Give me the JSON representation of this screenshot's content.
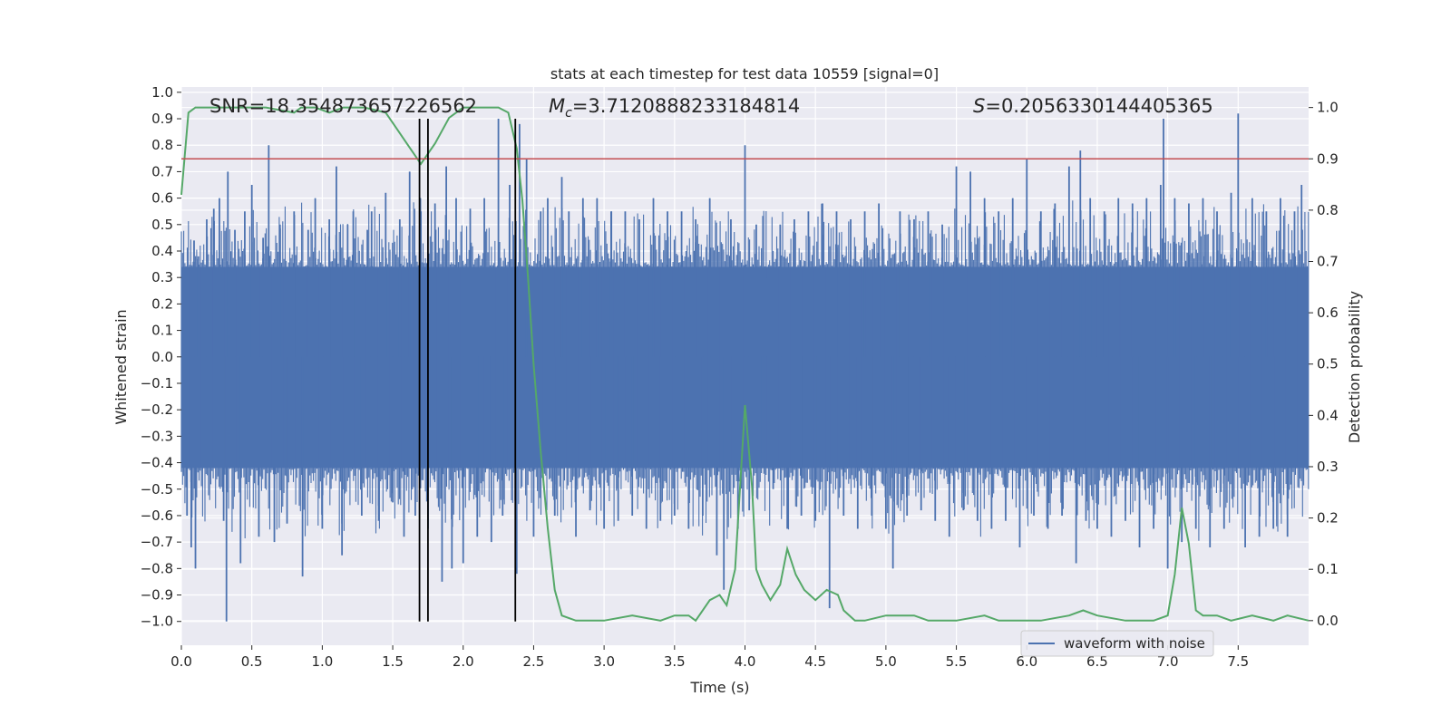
{
  "chart_data": {
    "type": "line",
    "title": "stats at each timestep for test data 10559 [signal=0]",
    "xlabel": "Time (s)",
    "ylabel_left": "Whitened strain",
    "ylabel_right": "Detection probability",
    "xlim": [
      0.0,
      8.0
    ],
    "ylim_left": [
      -1.09,
      1.02
    ],
    "ylim_right": [
      -0.048,
      1.04
    ],
    "xticks": [
      0.0,
      0.5,
      1.0,
      1.5,
      2.0,
      2.5,
      3.0,
      3.5,
      4.0,
      4.5,
      5.0,
      5.5,
      6.0,
      6.5,
      7.0,
      7.5
    ],
    "xtick_labels": [
      "0.0",
      "0.5",
      "1.0",
      "1.5",
      "2.0",
      "2.5",
      "3.0",
      "3.5",
      "4.0",
      "4.5",
      "5.0",
      "5.5",
      "6.0",
      "6.5",
      "7.0",
      "7.5"
    ],
    "yticks_left": [
      1.0,
      0.9,
      0.8,
      0.7,
      0.6,
      0.5,
      0.4,
      0.3,
      0.2,
      0.1,
      0.0,
      -0.1,
      -0.2,
      -0.3,
      -0.4,
      -0.5,
      -0.6,
      -0.7,
      -0.8,
      -0.9,
      -1.0
    ],
    "ytick_labels_left": [
      "1.0",
      "0.9",
      "0.8",
      "0.7",
      "0.6",
      "0.5",
      "0.4",
      "0.3",
      "0.2",
      "0.1",
      "0.0",
      "−0.1",
      "−0.2",
      "−0.3",
      "−0.4",
      "−0.5",
      "−0.6",
      "−0.7",
      "−0.8",
      "−0.9",
      "−1.0"
    ],
    "yticks_right": [
      1.0,
      0.9,
      0.8,
      0.7,
      0.6,
      0.5,
      0.4,
      0.3,
      0.2,
      0.1,
      0.0
    ],
    "ytick_labels_right": [
      "1.0",
      "0.9",
      "0.8",
      "0.7",
      "0.6",
      "0.5",
      "0.4",
      "0.3",
      "0.2",
      "0.1",
      "0.0"
    ],
    "grid": true,
    "legend": {
      "placement": "lower-right",
      "entries": [
        "waveform with noise"
      ]
    },
    "annotations": {
      "snr": "SNR=18.354873657226562",
      "mc_label": "M",
      "mc_sub": "c",
      "mc_value": "=3.7120888233184814",
      "s_label": "S",
      "s_value": "=0.2056330144405365"
    },
    "waveform": {
      "name": "waveform with noise",
      "color": "#4c72b0",
      "dense_band": [
        -0.42,
        0.34
      ],
      "spikes": [
        [
          0.04,
          -0.6
        ],
        [
          0.07,
          -0.72
        ],
        [
          0.09,
          0.44
        ],
        [
          0.1,
          -0.8
        ],
        [
          0.12,
          0.38
        ],
        [
          0.18,
          0.52
        ],
        [
          0.23,
          0.56
        ],
        [
          0.27,
          0.6
        ],
        [
          0.3,
          -0.62
        ],
        [
          0.32,
          -1.0
        ],
        [
          0.33,
          0.7
        ],
        [
          0.38,
          0.48
        ],
        [
          0.42,
          -0.78
        ],
        [
          0.45,
          0.55
        ],
        [
          0.5,
          0.65
        ],
        [
          0.55,
          -0.68
        ],
        [
          0.58,
          0.45
        ],
        [
          0.62,
          0.8
        ],
        [
          0.66,
          -0.7
        ],
        [
          0.7,
          0.5
        ],
        [
          0.75,
          -0.63
        ],
        [
          0.8,
          0.55
        ],
        [
          0.86,
          -0.83
        ],
        [
          0.9,
          0.48
        ],
        [
          0.95,
          0.6
        ],
        [
          1.0,
          -0.65
        ],
        [
          1.05,
          0.52
        ],
        [
          1.1,
          0.72
        ],
        [
          1.14,
          -0.75
        ],
        [
          1.18,
          0.5
        ],
        [
          1.22,
          0.55
        ],
        [
          1.28,
          -0.6
        ],
        [
          1.32,
          0.48
        ],
        [
          1.35,
          0.55
        ],
        [
          1.4,
          -0.62
        ],
        [
          1.45,
          0.62
        ],
        [
          1.5,
          -0.55
        ],
        [
          1.55,
          0.52
        ],
        [
          1.58,
          -0.68
        ],
        [
          1.62,
          0.7
        ],
        [
          1.66,
          -0.6
        ],
        [
          1.7,
          0.55
        ],
        [
          1.75,
          -0.65
        ],
        [
          1.8,
          0.58
        ],
        [
          1.85,
          -0.85
        ],
        [
          1.88,
          0.72
        ],
        [
          1.92,
          -0.8
        ],
        [
          1.95,
          0.6
        ],
        [
          2.0,
          -0.78
        ],
        [
          2.05,
          0.56
        ],
        [
          2.1,
          -0.68
        ],
        [
          2.15,
          0.6
        ],
        [
          2.2,
          -0.7
        ],
        [
          2.25,
          0.9
        ],
        [
          2.28,
          -0.6
        ],
        [
          2.33,
          0.65
        ],
        [
          2.38,
          -0.82
        ],
        [
          2.4,
          0.88
        ],
        [
          2.45,
          0.75
        ],
        [
          2.5,
          -0.68
        ],
        [
          2.55,
          0.55
        ],
        [
          2.6,
          0.6
        ],
        [
          2.65,
          -0.6
        ],
        [
          2.7,
          0.68
        ],
        [
          2.75,
          0.55
        ],
        [
          2.8,
          -0.68
        ],
        [
          2.85,
          0.6
        ],
        [
          2.9,
          -0.58
        ],
        [
          2.95,
          0.6
        ],
        [
          3.0,
          -0.65
        ],
        [
          3.05,
          0.55
        ],
        [
          3.1,
          -0.62
        ],
        [
          3.15,
          0.55
        ],
        [
          3.2,
          -0.6
        ],
        [
          3.25,
          0.52
        ],
        [
          3.3,
          -0.65
        ],
        [
          3.35,
          0.6
        ],
        [
          3.4,
          -0.62
        ],
        [
          3.45,
          0.55
        ],
        [
          3.5,
          -0.6
        ],
        [
          3.55,
          0.55
        ],
        [
          3.6,
          -0.65
        ],
        [
          3.65,
          0.52
        ],
        [
          3.7,
          -0.6
        ],
        [
          3.75,
          0.6
        ],
        [
          3.8,
          -0.75
        ],
        [
          3.85,
          -0.88
        ],
        [
          3.9,
          0.52
        ],
        [
          3.95,
          -0.65
        ],
        [
          4.0,
          0.8
        ],
        [
          4.03,
          -0.58
        ],
        [
          4.08,
          0.5
        ],
        [
          4.12,
          -0.4
        ],
        [
          4.15,
          0.3
        ],
        [
          4.2,
          -0.5
        ],
        [
          4.25,
          0.5
        ],
        [
          4.3,
          -0.65
        ],
        [
          4.35,
          0.52
        ],
        [
          4.4,
          -0.6
        ],
        [
          4.45,
          0.55
        ],
        [
          4.5,
          -0.62
        ],
        [
          4.55,
          0.58
        ],
        [
          4.6,
          -0.95
        ],
        [
          4.65,
          0.55
        ],
        [
          4.7,
          -0.6
        ],
        [
          4.75,
          0.52
        ],
        [
          4.8,
          -0.65
        ],
        [
          4.85,
          0.55
        ],
        [
          4.9,
          -0.6
        ],
        [
          4.95,
          0.58
        ],
        [
          5.0,
          -0.65
        ],
        [
          5.05,
          -0.8
        ],
        [
          5.1,
          0.55
        ],
        [
          5.15,
          -0.6
        ],
        [
          5.2,
          0.52
        ],
        [
          5.25,
          -0.58
        ],
        [
          5.3,
          0.55
        ],
        [
          5.35,
          -0.62
        ],
        [
          5.4,
          0.5
        ],
        [
          5.45,
          -0.68
        ],
        [
          5.5,
          0.72
        ],
        [
          5.55,
          -0.58
        ],
        [
          5.6,
          0.7
        ],
        [
          5.65,
          -0.62
        ],
        [
          5.7,
          0.6
        ],
        [
          5.75,
          -0.65
        ],
        [
          5.8,
          0.55
        ],
        [
          5.85,
          -0.62
        ],
        [
          5.9,
          0.6
        ],
        [
          5.95,
          -0.72
        ],
        [
          6.0,
          0.75
        ],
        [
          6.05,
          -0.6
        ],
        [
          6.1,
          0.55
        ],
        [
          6.15,
          -0.65
        ],
        [
          6.2,
          0.58
        ],
        [
          6.25,
          -0.6
        ],
        [
          6.3,
          0.72
        ],
        [
          6.35,
          -0.78
        ],
        [
          6.38,
          0.78
        ],
        [
          6.42,
          -0.62
        ],
        [
          6.45,
          0.6
        ],
        [
          6.5,
          -0.65
        ],
        [
          6.55,
          0.55
        ],
        [
          6.6,
          -0.68
        ],
        [
          6.65,
          0.6
        ],
        [
          6.7,
          -0.62
        ],
        [
          6.75,
          0.58
        ],
        [
          6.8,
          -0.72
        ],
        [
          6.85,
          0.6
        ],
        [
          6.9,
          -0.65
        ],
        [
          6.95,
          0.65
        ],
        [
          6.97,
          0.9
        ],
        [
          7.0,
          -0.8
        ],
        [
          7.05,
          0.6
        ],
        [
          7.1,
          -0.7
        ],
        [
          7.15,
          0.58
        ],
        [
          7.2,
          -0.65
        ],
        [
          7.25,
          0.6
        ],
        [
          7.3,
          -0.72
        ],
        [
          7.35,
          0.55
        ],
        [
          7.4,
          -0.65
        ],
        [
          7.45,
          0.62
        ],
        [
          7.5,
          0.92
        ],
        [
          7.55,
          -0.72
        ],
        [
          7.6,
          0.6
        ],
        [
          7.65,
          -0.68
        ],
        [
          7.7,
          0.55
        ],
        [
          7.75,
          -0.65
        ],
        [
          7.8,
          0.6
        ],
        [
          7.85,
          -0.68
        ],
        [
          7.9,
          0.55
        ],
        [
          7.95,
          0.65
        ]
      ]
    },
    "detection_probability": {
      "color": "#55a868",
      "x": [
        0.0,
        0.05,
        0.1,
        0.2,
        0.4,
        0.6,
        0.8,
        0.85,
        0.95,
        1.05,
        1.15,
        1.3,
        1.45,
        1.5,
        1.6,
        1.7,
        1.75,
        1.8,
        1.9,
        2.0,
        2.1,
        2.25,
        2.32,
        2.38,
        2.42,
        2.46,
        2.5,
        2.55,
        2.6,
        2.65,
        2.7,
        2.8,
        3.0,
        3.2,
        3.4,
        3.5,
        3.55,
        3.6,
        3.65,
        3.75,
        3.82,
        3.87,
        3.93,
        4.0,
        4.05,
        4.08,
        4.12,
        4.18,
        4.25,
        4.3,
        4.36,
        4.42,
        4.5,
        4.58,
        4.66,
        4.7,
        4.78,
        4.85,
        5.0,
        5.2,
        5.3,
        5.5,
        5.7,
        5.8,
        5.9,
        6.1,
        6.3,
        6.4,
        6.5,
        6.7,
        6.9,
        7.0,
        7.05,
        7.1,
        7.15,
        7.2,
        7.25,
        7.35,
        7.45,
        7.6,
        7.75,
        7.85,
        8.0
      ],
      "y": [
        0.83,
        0.99,
        1.0,
        1.0,
        1.0,
        1.0,
        0.99,
        1.0,
        1.0,
        0.99,
        1.0,
        1.0,
        0.99,
        0.97,
        0.93,
        0.89,
        0.91,
        0.93,
        0.98,
        1.0,
        1.0,
        1.0,
        0.99,
        0.92,
        0.82,
        0.67,
        0.5,
        0.33,
        0.18,
        0.06,
        0.01,
        0.0,
        0.0,
        0.01,
        0.0,
        0.01,
        0.01,
        0.01,
        0.0,
        0.04,
        0.05,
        0.03,
        0.1,
        0.42,
        0.26,
        0.1,
        0.07,
        0.04,
        0.07,
        0.14,
        0.09,
        0.06,
        0.04,
        0.06,
        0.05,
        0.02,
        0.0,
        0.0,
        0.01,
        0.01,
        0.0,
        0.0,
        0.01,
        0.0,
        0.0,
        0.0,
        0.01,
        0.02,
        0.01,
        0.0,
        0.0,
        0.01,
        0.09,
        0.22,
        0.15,
        0.02,
        0.01,
        0.01,
        0.0,
        0.01,
        0.0,
        0.01,
        0.0
      ]
    },
    "threshold": {
      "value": 0.9,
      "axis": "right",
      "color": "#c44e52"
    },
    "vlines": [
      1.69,
      1.75,
      2.37
    ],
    "vline_range": [
      -1.0,
      0.9
    ]
  }
}
